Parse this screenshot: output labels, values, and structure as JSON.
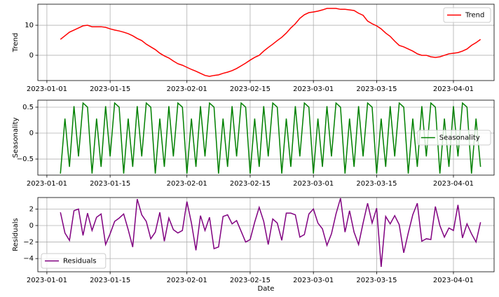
{
  "chart_data": [
    {
      "type": "line",
      "ylabel": "Trend",
      "x": [
        "2023-01-04",
        "2023-01-05",
        "2023-01-06",
        "2023-01-07",
        "2023-01-08",
        "2023-01-09",
        "2023-01-10",
        "2023-01-11",
        "2023-01-12",
        "2023-01-13",
        "2023-01-14",
        "2023-01-15",
        "2023-01-16",
        "2023-01-17",
        "2023-01-18",
        "2023-01-19",
        "2023-01-20",
        "2023-01-21",
        "2023-01-22",
        "2023-01-23",
        "2023-01-24",
        "2023-01-25",
        "2023-01-26",
        "2023-01-27",
        "2023-01-28",
        "2023-01-29",
        "2023-01-30",
        "2023-01-31",
        "2023-02-01",
        "2023-02-02",
        "2023-02-03",
        "2023-02-04",
        "2023-02-05",
        "2023-02-06",
        "2023-02-07",
        "2023-02-08",
        "2023-02-09",
        "2023-02-10",
        "2023-02-11",
        "2023-02-12",
        "2023-02-13",
        "2023-02-14",
        "2023-02-15",
        "2023-02-16",
        "2023-02-17",
        "2023-02-18",
        "2023-02-19",
        "2023-02-20",
        "2023-02-21",
        "2023-02-22",
        "2023-02-23",
        "2023-02-24",
        "2023-02-25",
        "2023-02-26",
        "2023-02-27",
        "2023-02-28",
        "2023-03-01",
        "2023-03-02",
        "2023-03-03",
        "2023-03-04",
        "2023-03-05",
        "2023-03-06",
        "2023-03-07",
        "2023-03-08",
        "2023-03-09",
        "2023-03-10",
        "2023-03-11",
        "2023-03-12",
        "2023-03-13",
        "2023-03-14",
        "2023-03-15",
        "2023-03-16",
        "2023-03-17",
        "2023-03-18",
        "2023-03-19",
        "2023-03-20",
        "2023-03-21",
        "2023-03-22",
        "2023-03-23",
        "2023-03-24",
        "2023-03-25",
        "2023-03-26",
        "2023-03-27",
        "2023-03-28",
        "2023-03-29",
        "2023-03-30",
        "2023-03-31",
        "2023-04-01",
        "2023-04-02",
        "2023-04-03",
        "2023-04-04",
        "2023-04-05",
        "2023-04-06",
        "2023-04-07"
      ],
      "series": [
        {
          "name": "Trend",
          "color": "red",
          "values": [
            5.3,
            6.5,
            7.7,
            8.4,
            9.1,
            9.8,
            10.0,
            9.5,
            9.5,
            9.5,
            9.3,
            8.8,
            8.4,
            8.1,
            7.7,
            7.2,
            6.5,
            5.6,
            4.9,
            3.7,
            2.8,
            1.9,
            0.7,
            -0.2,
            -0.9,
            -1.9,
            -2.8,
            -3.3,
            -4.0,
            -4.7,
            -5.3,
            -6.0,
            -6.7,
            -7.0,
            -6.7,
            -6.5,
            -6.0,
            -5.6,
            -5.1,
            -4.4,
            -3.5,
            -2.6,
            -1.6,
            -0.7,
            0,
            1.4,
            2.6,
            3.7,
            4.9,
            6.0,
            7.4,
            9.1,
            10.5,
            12.3,
            13.5,
            14.2,
            14.4,
            14.7,
            15.1,
            15.6,
            15.6,
            15.6,
            15.3,
            15.3,
            15.1,
            14.9,
            14.0,
            13.3,
            11.4,
            10.5,
            9.8,
            8.8,
            7.4,
            6.3,
            4.7,
            3.3,
            2.8,
            2.1,
            1.4,
            0.5,
            0,
            0,
            -0.5,
            -0.7,
            -0.5,
            0,
            0.5,
            0.7,
            0.9,
            1.4,
            2.1,
            3.3,
            4.2,
            5.3
          ]
        }
      ],
      "xlim": [
        "2022-12-30",
        "2023-04-10"
      ],
      "xticks": [
        "2023-01-01",
        "2023-01-15",
        "2023-02-01",
        "2023-02-15",
        "2023-03-01",
        "2023-03-15",
        "2023-04-01"
      ],
      "ylim": [
        -8.4,
        17
      ],
      "yticks": [
        0,
        10
      ],
      "grid": true,
      "legend": "upper right"
    },
    {
      "type": "line",
      "ylabel": "Seasonality",
      "x": [
        "2023-01-04",
        "2023-01-05",
        "2023-01-06",
        "2023-01-07",
        "2023-01-08",
        "2023-01-09",
        "2023-01-10",
        "2023-01-11",
        "2023-01-12",
        "2023-01-13",
        "2023-01-14",
        "2023-01-15",
        "2023-01-16",
        "2023-01-17",
        "2023-01-18",
        "2023-01-19",
        "2023-01-20",
        "2023-01-21",
        "2023-01-22",
        "2023-01-23",
        "2023-01-24",
        "2023-01-25",
        "2023-01-26",
        "2023-01-27",
        "2023-01-28",
        "2023-01-29",
        "2023-01-30",
        "2023-01-31",
        "2023-02-01",
        "2023-02-02",
        "2023-02-03",
        "2023-02-04",
        "2023-02-05",
        "2023-02-06",
        "2023-02-07",
        "2023-02-08",
        "2023-02-09",
        "2023-02-10",
        "2023-02-11",
        "2023-02-12",
        "2023-02-13",
        "2023-02-14",
        "2023-02-15",
        "2023-02-16",
        "2023-02-17",
        "2023-02-18",
        "2023-02-19",
        "2023-02-20",
        "2023-02-21",
        "2023-02-22",
        "2023-02-23",
        "2023-02-24",
        "2023-02-25",
        "2023-02-26",
        "2023-02-27",
        "2023-02-28",
        "2023-03-01",
        "2023-03-02",
        "2023-03-03",
        "2023-03-04",
        "2023-03-05",
        "2023-03-06",
        "2023-03-07",
        "2023-03-08",
        "2023-03-09",
        "2023-03-10",
        "2023-03-11",
        "2023-03-12",
        "2023-03-13",
        "2023-03-14",
        "2023-03-15",
        "2023-03-16",
        "2023-03-17",
        "2023-03-18",
        "2023-03-19",
        "2023-03-20",
        "2023-03-21",
        "2023-03-22",
        "2023-03-23",
        "2023-03-24",
        "2023-03-25",
        "2023-03-26",
        "2023-03-27",
        "2023-03-28",
        "2023-03-29",
        "2023-03-30",
        "2023-03-31",
        "2023-04-01",
        "2023-04-02",
        "2023-04-03",
        "2023-04-04",
        "2023-04-05",
        "2023-04-06",
        "2023-04-07"
      ],
      "series": [
        {
          "name": "Seasonality",
          "color": "green",
          "values": [
            -0.78,
            0.28,
            -0.65,
            0.52,
            -0.45,
            0.58,
            0.5,
            -0.78,
            0.28,
            -0.65,
            0.52,
            -0.45,
            0.58,
            0.5,
            -0.78,
            0.28,
            -0.65,
            0.52,
            -0.45,
            0.58,
            0.5,
            -0.78,
            0.28,
            -0.65,
            0.52,
            -0.45,
            0.58,
            0.5,
            -0.78,
            0.28,
            -0.65,
            0.52,
            -0.45,
            0.58,
            0.5,
            -0.78,
            0.28,
            -0.65,
            0.52,
            -0.45,
            0.58,
            0.5,
            -0.78,
            0.28,
            -0.65,
            0.52,
            -0.45,
            0.58,
            0.5,
            -0.78,
            0.28,
            -0.65,
            0.52,
            -0.45,
            0.58,
            0.5,
            -0.78,
            0.28,
            -0.65,
            0.52,
            -0.45,
            0.58,
            0.5,
            -0.78,
            0.28,
            -0.65,
            0.52,
            -0.45,
            0.58,
            0.5,
            -0.78,
            0.28,
            -0.65,
            0.52,
            -0.45,
            0.58,
            0.5,
            -0.78,
            0.28,
            -0.65,
            0.52,
            -0.45,
            0.58,
            0.5,
            -0.78,
            0.28,
            -0.65,
            0.52,
            -0.45,
            0.58,
            0.5,
            -0.78,
            0.28,
            -0.65
          ]
        }
      ],
      "xlim": [
        "2022-12-30",
        "2023-04-10"
      ],
      "xticks": [
        "2023-01-01",
        "2023-01-15",
        "2023-02-01",
        "2023-02-15",
        "2023-03-01",
        "2023-03-15",
        "2023-04-01"
      ],
      "ylim": [
        -0.81,
        0.635
      ],
      "yticks": [
        {
          "value": -0.5,
          "label": "−0.5"
        },
        0.0,
        0.5
      ],
      "grid": true,
      "legend": "center right"
    },
    {
      "type": "line",
      "ylabel": "Residuals",
      "xlabel": "Date",
      "x": [
        "2023-01-04",
        "2023-01-05",
        "2023-01-06",
        "2023-01-07",
        "2023-01-08",
        "2023-01-09",
        "2023-01-10",
        "2023-01-11",
        "2023-01-12",
        "2023-01-13",
        "2023-01-14",
        "2023-01-15",
        "2023-01-16",
        "2023-01-17",
        "2023-01-18",
        "2023-01-19",
        "2023-01-20",
        "2023-01-21",
        "2023-01-22",
        "2023-01-23",
        "2023-01-24",
        "2023-01-25",
        "2023-01-26",
        "2023-01-27",
        "2023-01-28",
        "2023-01-29",
        "2023-01-30",
        "2023-01-31",
        "2023-02-01",
        "2023-02-02",
        "2023-02-03",
        "2023-02-04",
        "2023-02-05",
        "2023-02-06",
        "2023-02-07",
        "2023-02-08",
        "2023-02-09",
        "2023-02-10",
        "2023-02-11",
        "2023-02-12",
        "2023-02-13",
        "2023-02-14",
        "2023-02-15",
        "2023-02-16",
        "2023-02-17",
        "2023-02-18",
        "2023-02-19",
        "2023-02-20",
        "2023-02-21",
        "2023-02-22",
        "2023-02-23",
        "2023-02-24",
        "2023-02-25",
        "2023-02-26",
        "2023-02-27",
        "2023-02-28",
        "2023-03-01",
        "2023-03-02",
        "2023-03-03",
        "2023-03-04",
        "2023-03-05",
        "2023-03-06",
        "2023-03-07",
        "2023-03-08",
        "2023-03-09",
        "2023-03-10",
        "2023-03-11",
        "2023-03-12",
        "2023-03-13",
        "2023-03-14",
        "2023-03-15",
        "2023-03-16",
        "2023-03-17",
        "2023-03-18",
        "2023-03-19",
        "2023-03-20",
        "2023-03-21",
        "2023-03-22",
        "2023-03-23",
        "2023-03-24",
        "2023-03-25",
        "2023-03-26",
        "2023-03-27",
        "2023-03-28",
        "2023-03-29",
        "2023-03-30",
        "2023-03-31",
        "2023-04-01",
        "2023-04-02",
        "2023-04-03",
        "2023-04-04",
        "2023-04-05",
        "2023-04-06",
        "2023-04-07"
      ],
      "series": [
        {
          "name": "Residuals",
          "color": "purple",
          "values": [
            1.6,
            -0.9,
            -1.8,
            1.8,
            2.0,
            -1.2,
            1.5,
            -0.6,
            1.0,
            1.4,
            -2.3,
            -1.0,
            0.5,
            0.9,
            1.4,
            -0.5,
            -2.6,
            3.2,
            1.3,
            0.5,
            -1.6,
            -0.8,
            1.6,
            -1.9,
            0.9,
            -0.5,
            -0.9,
            -0.6,
            2.9,
            0.3,
            -3.0,
            1.2,
            -0.6,
            1.0,
            -2.8,
            -2.6,
            1.1,
            1.3,
            0.2,
            0.6,
            -0.7,
            -2.0,
            -1.7,
            0.4,
            2.2,
            0.5,
            -2.3,
            0.8,
            0.3,
            -1.8,
            1.5,
            1.5,
            1.3,
            -1.4,
            -1.1,
            1.4,
            2.0,
            0.3,
            -0.4,
            -2.4,
            -1.0,
            1.4,
            3.3,
            -0.8,
            1.8,
            -0.8,
            -2.3,
            0.3,
            2.7,
            0.3,
            2.1,
            -5.0,
            1.1,
            0.2,
            1.2,
            0.1,
            -3.3,
            -0.9,
            1.3,
            2.7,
            -1.9,
            -1.6,
            -1.7,
            2.3,
            0,
            -1.4,
            -0.3,
            -0.6,
            2.5,
            -1.5,
            0.2,
            -1.0,
            -2.0,
            0.4
          ]
        }
      ],
      "xlim": [
        "2022-12-30",
        "2023-04-10"
      ],
      "xticks": [
        "2023-01-01",
        "2023-01-15",
        "2023-02-01",
        "2023-02-15",
        "2023-03-01",
        "2023-03-15",
        "2023-04-01"
      ],
      "ylim": [
        -5.6,
        3.39
      ],
      "yticks": [
        {
          "value": -4,
          "label": "−4"
        },
        {
          "value": -2,
          "label": "−2"
        },
        0,
        2
      ],
      "grid": true,
      "legend": "lower left"
    }
  ]
}
